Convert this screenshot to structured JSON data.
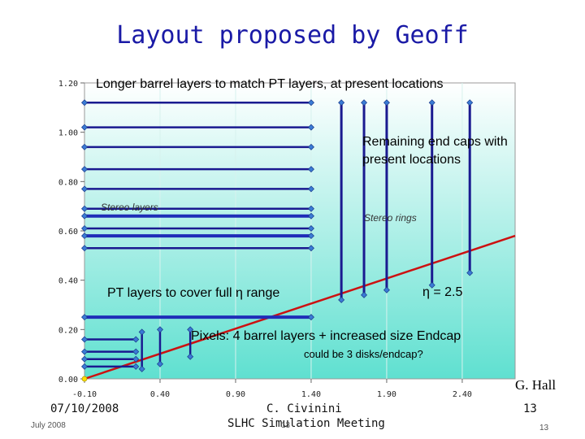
{
  "slide": {
    "title": "Layout proposed by Geoff",
    "annotations": {
      "longer_barrel": "Longer barrel layers to match PT layers, at present locations",
      "remaining_endcaps_line1": "Remaining end caps with",
      "remaining_endcaps_line2": "present locations",
      "stereo_layers": "Stereo layers",
      "stereo_rings": "Stereo rings",
      "pt_layers": "PT layers to cover full η range",
      "eta_label": "η = 2.5",
      "pixels": "Pixels: 4 barrel layers + increased size Endcap",
      "disks_note": "could be 3 disks/endcap?"
    },
    "footer": {
      "author": "G. Hall",
      "date": "07/10/2008",
      "presenter": "C. Civinini",
      "meeting": "SLHC Simulation Meeting",
      "slide_number": "13",
      "overlay_date": "July 2008",
      "overlay_page": "13",
      "overlay_number": "13"
    }
  },
  "chart_data": {
    "type": "scatter",
    "x_ticks": [
      "-0.10",
      "0.40",
      "0.90",
      "1.40",
      "1.90",
      "2.40"
    ],
    "y_ticks": [
      "0.00",
      "0.20",
      "0.40",
      "0.60",
      "0.80",
      "1.00",
      "1.20"
    ],
    "xlim": [
      -0.1,
      2.75
    ],
    "ylim": [
      0.0,
      1.2
    ],
    "colors": {
      "barrel": "#1a1a90",
      "pt_layer": "#1f2db8",
      "endcap": "#1a1a90",
      "marker": "#3a7bd5",
      "eta_line": "#cc1111",
      "plot_top": "#ffffff",
      "plot_bottom": "#5fe0d0"
    },
    "barrel_layers": [
      {
        "r": 1.12,
        "z_max": 1.4
      },
      {
        "r": 1.02,
        "z_max": 1.4
      },
      {
        "r": 0.94,
        "z_max": 1.4
      },
      {
        "r": 0.85,
        "z_max": 1.4
      },
      {
        "r": 0.77,
        "z_max": 1.4
      },
      {
        "r": 0.69,
        "z_max": 1.4
      },
      {
        "r": 0.61,
        "z_max": 1.4
      },
      {
        "r": 0.53,
        "z_max": 1.4
      }
    ],
    "pt_layers": [
      {
        "r": 0.66,
        "z_max": 1.4
      },
      {
        "r": 0.58,
        "z_max": 1.4
      },
      {
        "r": 0.25,
        "z_max": 1.4
      }
    ],
    "endcaps": [
      {
        "z": 1.6,
        "r_min": 0.32,
        "r_max": 1.12
      },
      {
        "z": 1.75,
        "r_min": 0.34,
        "r_max": 1.12
      },
      {
        "z": 1.9,
        "r_min": 0.36,
        "r_max": 1.12
      },
      {
        "z": 2.2,
        "r_min": 0.38,
        "r_max": 1.12
      },
      {
        "z": 2.45,
        "r_min": 0.43,
        "r_max": 1.12
      }
    ],
    "pixel_barrel": [
      {
        "r": 0.16,
        "z_max": 0.24
      },
      {
        "r": 0.11,
        "z_max": 0.24
      },
      {
        "r": 0.08,
        "z_max": 0.24
      },
      {
        "r": 0.05,
        "z_max": 0.24
      }
    ],
    "pixel_disks": [
      {
        "z": 0.28,
        "r_min": 0.04,
        "r_max": 0.19
      },
      {
        "z": 0.4,
        "r_min": 0.06,
        "r_max": 0.2
      },
      {
        "z": 0.6,
        "r_min": 0.09,
        "r_max": 0.2
      }
    ],
    "eta_line": [
      {
        "x": -0.1,
        "y": 0.0
      },
      {
        "x": 2.75,
        "y": 0.58
      }
    ]
  }
}
